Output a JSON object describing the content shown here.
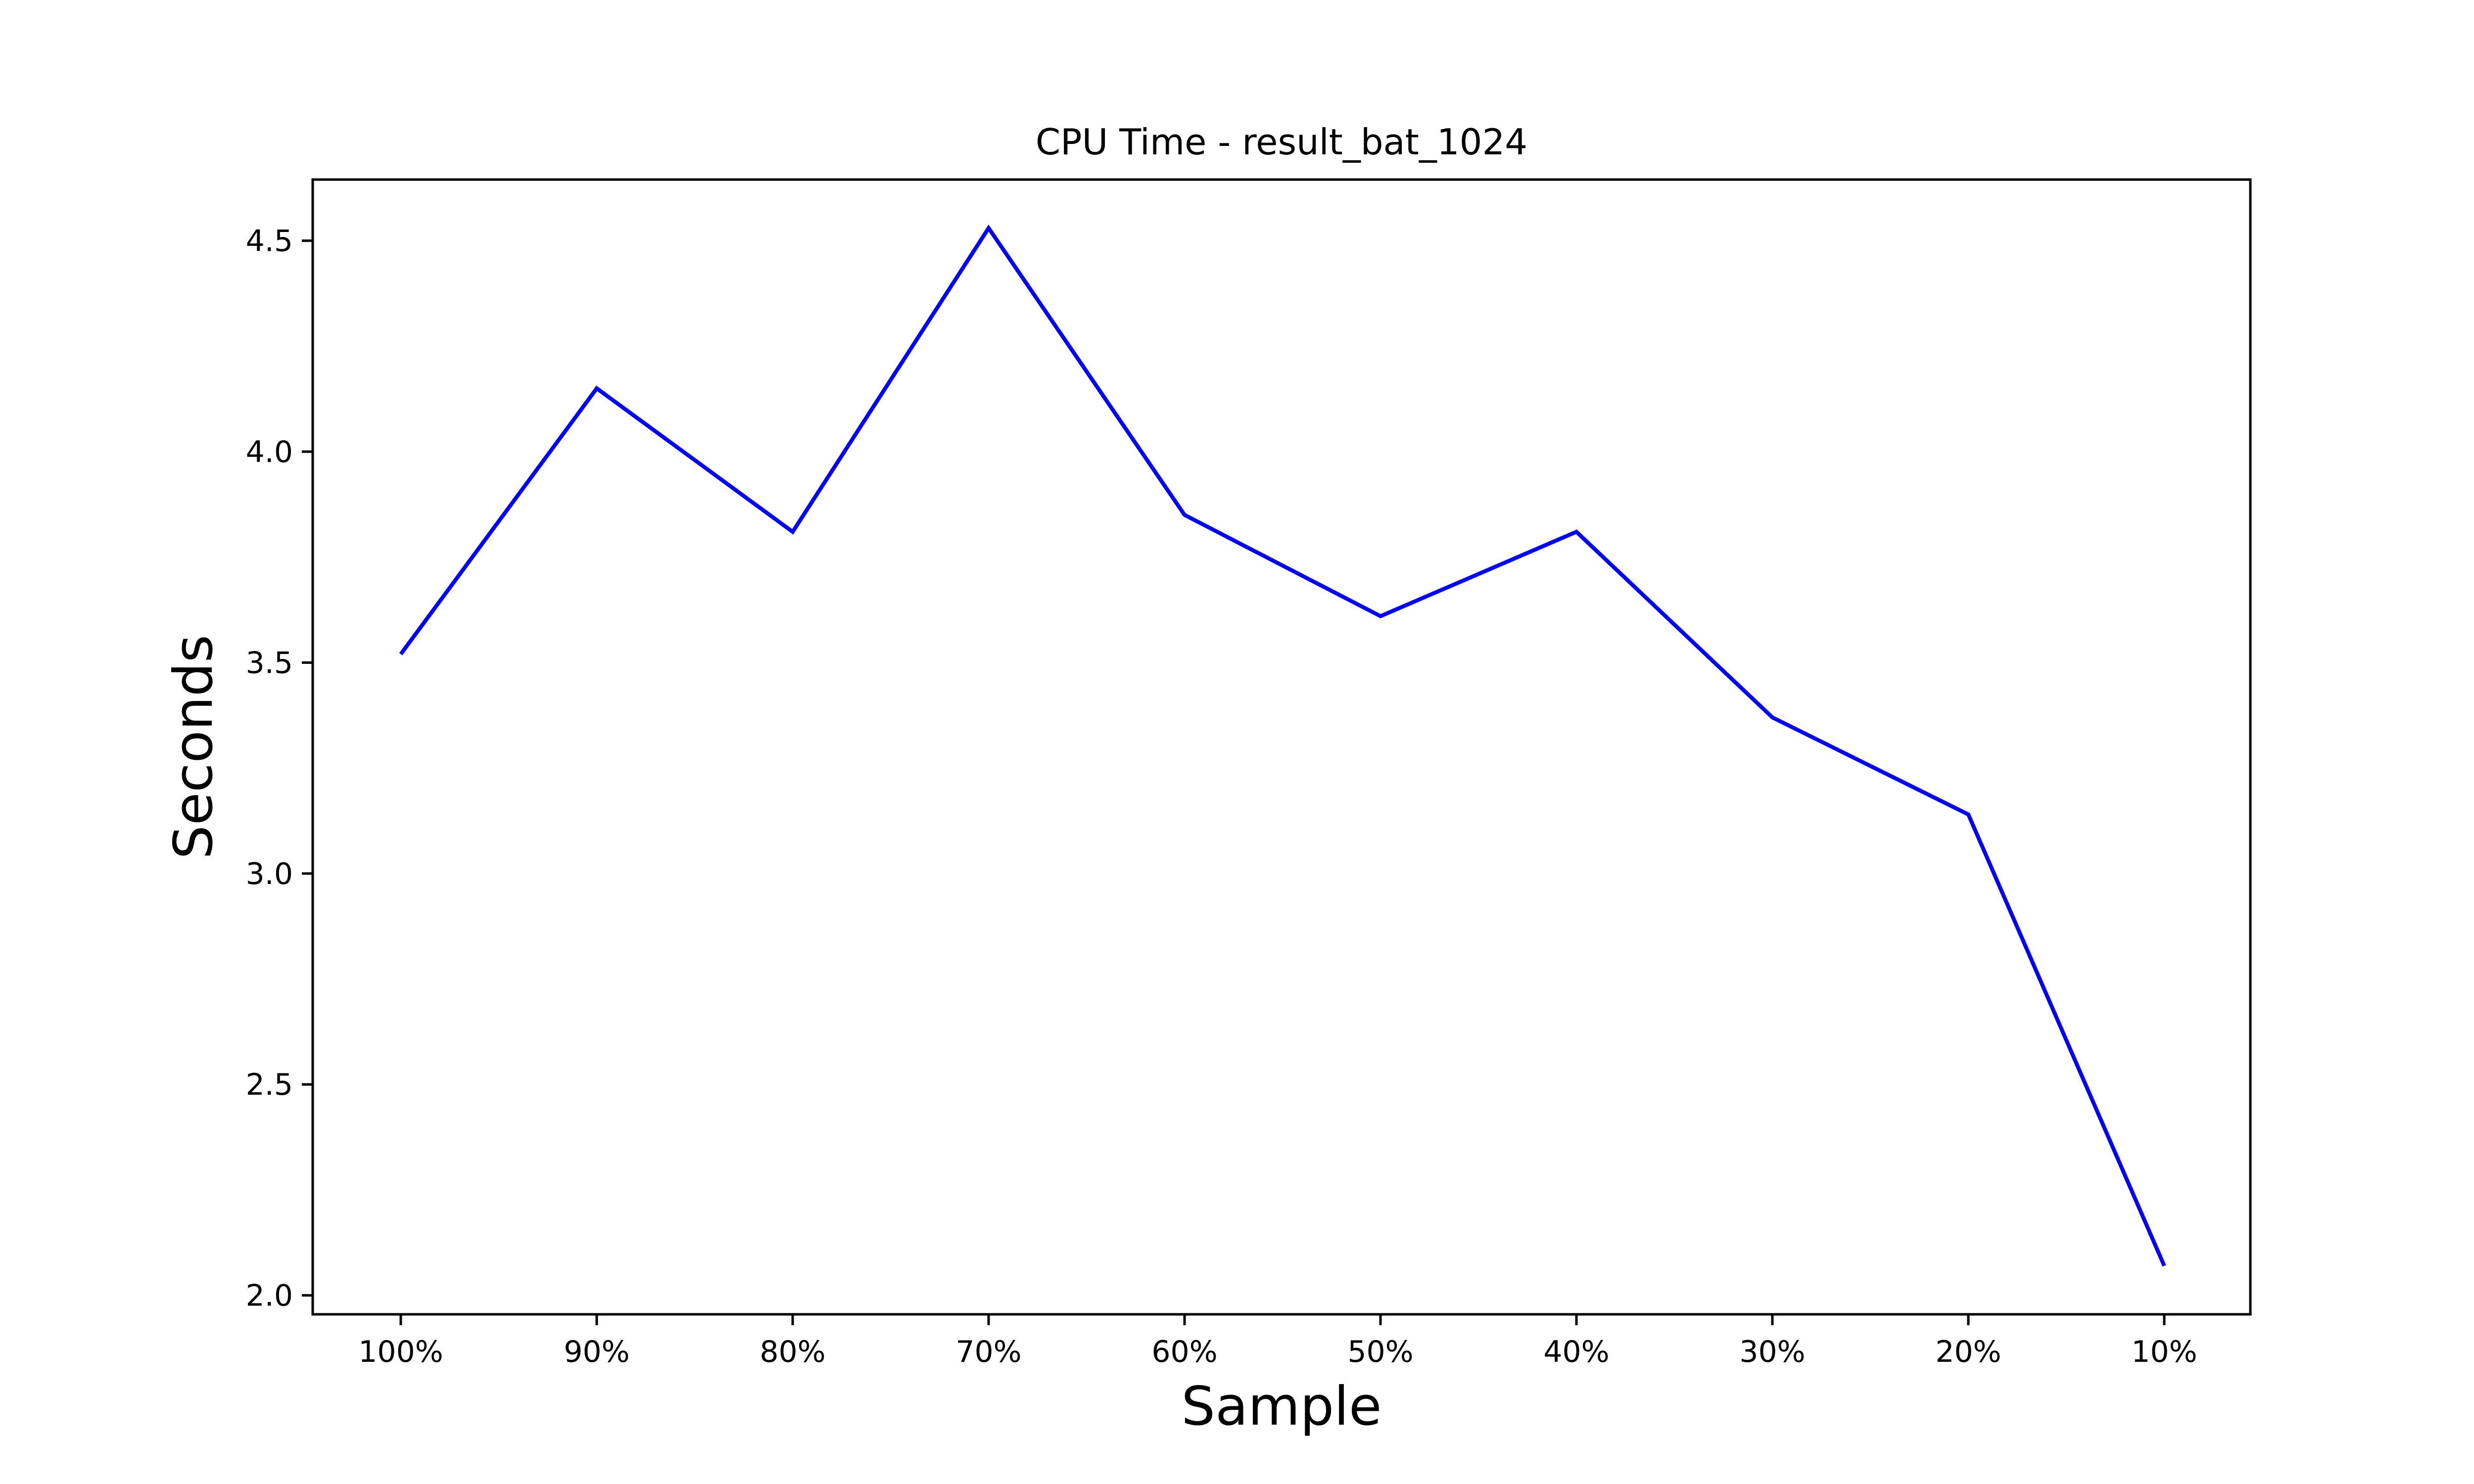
{
  "chart_data": {
    "type": "line",
    "title": "CPU Time - result_bat_1024",
    "xlabel": "Sample",
    "ylabel": "Seconds",
    "categories": [
      "100%",
      "90%",
      "80%",
      "70%",
      "60%",
      "50%",
      "40%",
      "30%",
      "20%",
      "10%"
    ],
    "series": [
      {
        "values": [
          3.52,
          4.15,
          3.81,
          4.53,
          3.85,
          3.61,
          3.81,
          3.37,
          3.14,
          2.07
        ],
        "color": "#0000ff"
      }
    ],
    "ylim": [
      1.955,
      4.645
    ],
    "yticks": [
      2.0,
      2.5,
      3.0,
      3.5,
      4.0,
      4.5
    ],
    "ytick_labels": [
      "2.0",
      "2.5",
      "3.0",
      "3.5",
      "4.0",
      "4.5"
    ],
    "grid": false,
    "legend": "none"
  }
}
